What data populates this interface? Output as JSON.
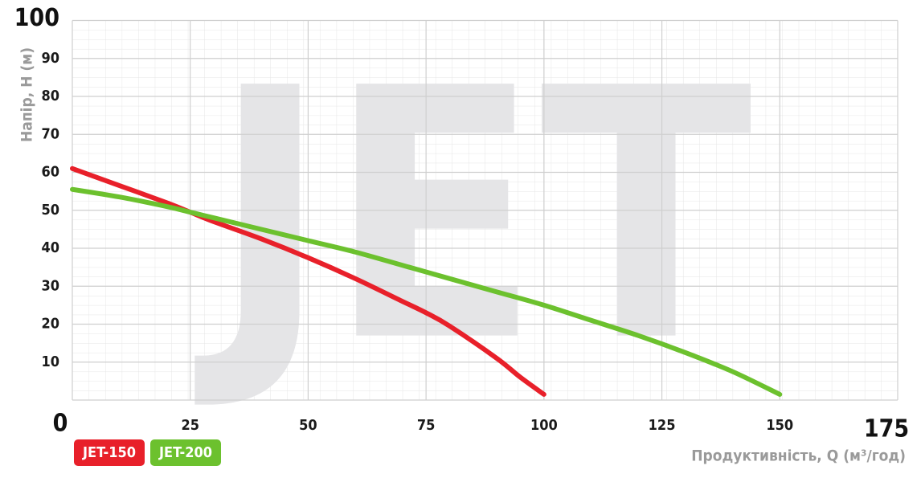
{
  "chart_data": {
    "type": "line",
    "watermark": "JET",
    "x_label": "Продуктивність, Q (м³/год)",
    "y_label": "Напір, Н (м)",
    "xlim": [
      0,
      175
    ],
    "xticks": [
      25,
      50,
      75,
      100,
      125,
      150,
      175
    ],
    "ylim": [
      0,
      100
    ],
    "yticks": [
      0,
      10,
      20,
      30,
      40,
      50,
      60,
      70,
      80,
      90,
      100
    ],
    "grid": true,
    "legend": "bottom-left",
    "series": [
      {
        "name": "JET-150",
        "color": "#e8202a",
        "x": [
          0,
          10,
          20,
          25,
          30,
          40,
          50,
          60,
          70,
          75,
          80,
          90,
          95,
          100
        ],
        "values": [
          61,
          56.5,
          52,
          49.5,
          47,
          42.5,
          37.5,
          32,
          26,
          23,
          19.5,
          11,
          6,
          1.5
        ]
      },
      {
        "name": "JET-200",
        "color": "#6cc12e",
        "x": [
          0,
          10,
          20,
          25,
          30,
          40,
          50,
          60,
          70,
          80,
          90,
          100,
          110,
          120,
          130,
          140,
          150
        ],
        "values": [
          55.5,
          53.5,
          51,
          49.5,
          48,
          45,
          42,
          39,
          35.5,
          32,
          28.5,
          25,
          21,
          17,
          12.5,
          7.5,
          1.5
        ]
      }
    ]
  }
}
